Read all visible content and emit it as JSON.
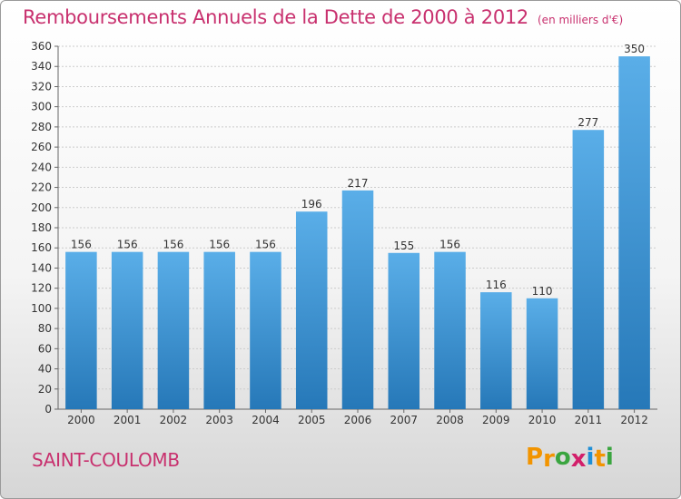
{
  "title": "Remboursements Annuels de la Dette de 2000 à 2012",
  "unit_note": "(en milliers d'€)",
  "commune": "SAINT-COULOMB",
  "brand": {
    "letters": [
      "P",
      "r",
      "o",
      "x",
      "i",
      "t",
      "i"
    ],
    "colors": [
      "#f29400",
      "#f29400",
      "#3aa53f",
      "#d21f6a",
      "#1f8fd6",
      "#f29400",
      "#3aa53f"
    ]
  },
  "colors": {
    "title": "#c8306e",
    "bar_light": "#5aaee8",
    "bar_dark": "#2678b8",
    "grid": "#cccccc"
  },
  "chart_data": {
    "type": "bar",
    "categories": [
      "2000",
      "2001",
      "2002",
      "2003",
      "2004",
      "2005",
      "2006",
      "2007",
      "2008",
      "2009",
      "2010",
      "2011",
      "2012"
    ],
    "values": [
      156,
      156,
      156,
      156,
      156,
      196,
      217,
      155,
      156,
      116,
      110,
      277,
      350
    ],
    "ylim": [
      0,
      360
    ],
    "yticks": [
      0,
      20,
      40,
      60,
      80,
      100,
      120,
      140,
      160,
      180,
      200,
      220,
      240,
      260,
      280,
      300,
      320,
      340,
      360
    ],
    "grid": true,
    "legend": "none",
    "data_labels": true
  }
}
